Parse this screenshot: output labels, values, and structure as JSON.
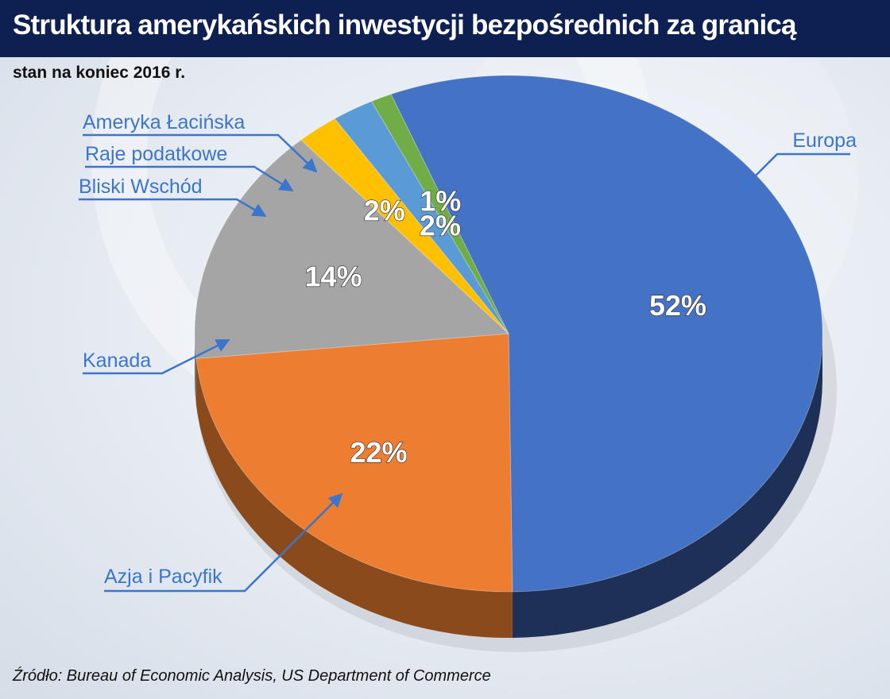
{
  "header": {
    "title": "Struktura amerykańskich inwestycji bezpośrednich za granicą",
    "subtitle": "stan na koniec 2016 r."
  },
  "footer": {
    "source": "Źródło: Bureau of Economic Analysis, US Department of Commerce"
  },
  "chart_data": {
    "type": "pie",
    "title": "Struktura amerykańskich inwestycji bezpośrednich za granicą",
    "subtitle": "stan na koniec 2016 r.",
    "style": "3d-tilted",
    "slices": [
      {
        "name": "Europa",
        "value": 52,
        "label": "52%",
        "color": "#4472c4",
        "side_color": "#1f3057"
      },
      {
        "name": "Azja i Pacyfik",
        "value": 22,
        "label": "22%",
        "color": "#ed7d31",
        "side_color": "#8a4a1c"
      },
      {
        "name": "Kanada",
        "value": 14,
        "label": "14%",
        "color": "#a5a5a5",
        "side_color": "#6e6e6e"
      },
      {
        "name": "Bliski Wschód",
        "value": 2,
        "label": "2%",
        "color": "#ffc000",
        "side_color": "#9a7300"
      },
      {
        "name": "Raje podatkowe",
        "value": 2,
        "label": "2%",
        "color": "#5b9bd5",
        "side_color": "#2f5d88"
      },
      {
        "name": "Ameryka Łacińska",
        "value": 1,
        "label": "1%",
        "color": "#70ad47",
        "side_color": "#3f6b25"
      }
    ],
    "label_color": "#3b75cc",
    "arrow_color": "#3b75cc"
  }
}
